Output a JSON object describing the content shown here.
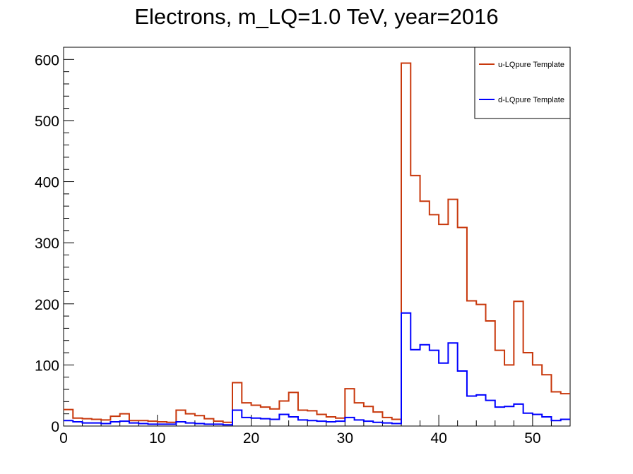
{
  "chart_data": {
    "type": "histogram",
    "title": "Electrons, m_LQ=1.0 TeV, year=2016",
    "xlabel": "",
    "ylabel": "",
    "xlim": [
      0,
      54
    ],
    "ylim": [
      0,
      620
    ],
    "bin_width": 1,
    "x_ticks": [
      0,
      10,
      20,
      30,
      40,
      50
    ],
    "x_tick_labels": [
      "0",
      "10",
      "20",
      "30",
      "40",
      "50"
    ],
    "y_ticks": [
      0,
      100,
      200,
      300,
      400,
      500,
      600
    ],
    "y_tick_labels": [
      "0",
      "100",
      "200",
      "300",
      "400",
      "500",
      "600"
    ],
    "legend_position": "top-right",
    "series": [
      {
        "name": "u-LQpure Template",
        "color": "#c8380c",
        "values": [
          27,
          13,
          12,
          11,
          10,
          16,
          20,
          9,
          9,
          8,
          7,
          6,
          26,
          20,
          17,
          12,
          8,
          6,
          71,
          38,
          34,
          31,
          28,
          41,
          55,
          26,
          25,
          19,
          15,
          13,
          61,
          38,
          32,
          23,
          14,
          11,
          594,
          410,
          368,
          346,
          330,
          371,
          325,
          205,
          199,
          172,
          124,
          100,
          204,
          120,
          100,
          84,
          56,
          53
        ]
      },
      {
        "name": "d-LQpure Template",
        "color": "#0000ff",
        "values": [
          9,
          7,
          5,
          5,
          4,
          7,
          8,
          5,
          4,
          3,
          3,
          3,
          7,
          5,
          4,
          3,
          3,
          2,
          26,
          14,
          13,
          12,
          11,
          19,
          15,
          10,
          9,
          8,
          7,
          8,
          14,
          10,
          8,
          6,
          5,
          4,
          185,
          125,
          133,
          124,
          103,
          136,
          90,
          49,
          51,
          42,
          31,
          32,
          36,
          21,
          19,
          15,
          9,
          11
        ]
      }
    ]
  }
}
